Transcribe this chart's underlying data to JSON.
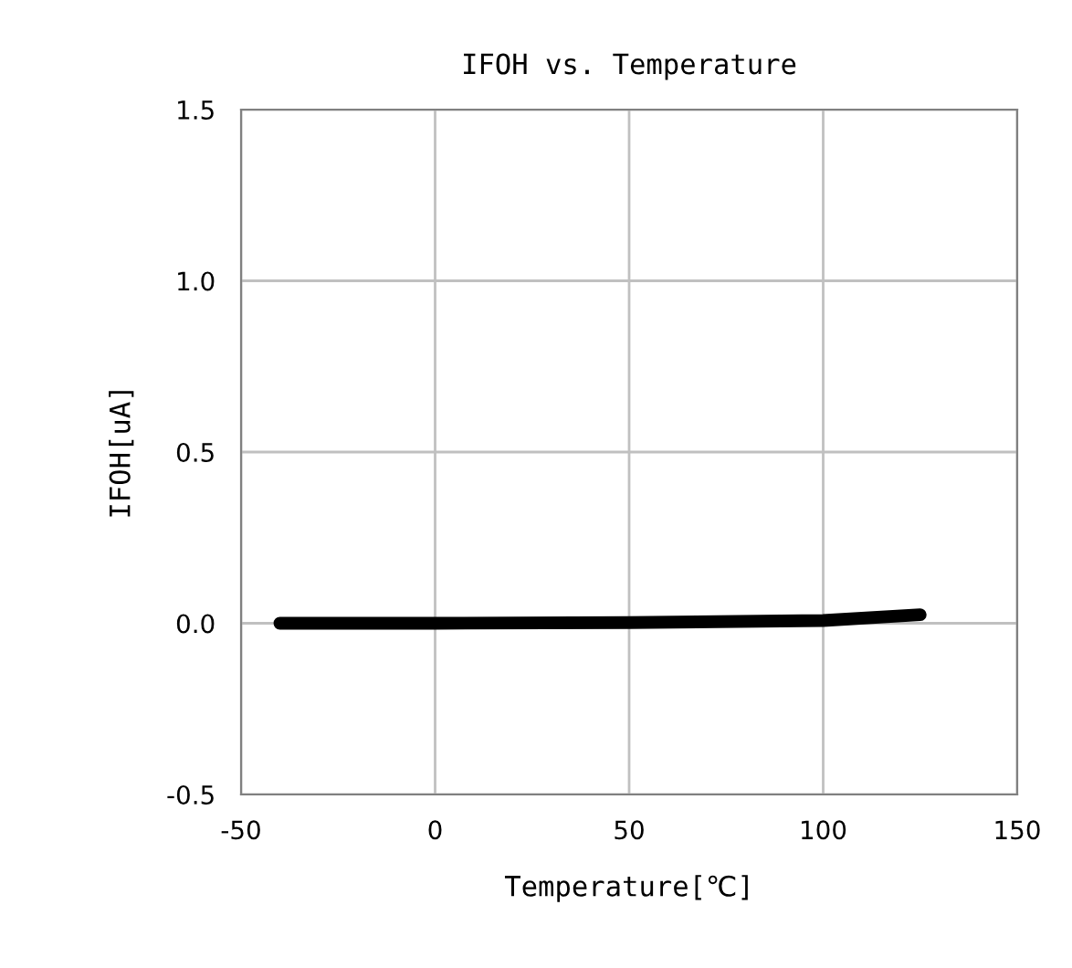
{
  "chart_data": {
    "type": "line",
    "title": "IFOH vs. Temperature",
    "xlabel": "Temperature[℃]",
    "ylabel": "IFOH[uA]",
    "x": [
      -40,
      0,
      50,
      100,
      125
    ],
    "series": [
      {
        "color": "#000000",
        "values": [
          0,
          0,
          0.002,
          0.008,
          0.025
        ]
      }
    ],
    "xlim": [
      -50,
      150
    ],
    "xticks": [
      -50,
      0,
      50,
      100,
      150
    ],
    "ylim": [
      -0.5,
      1.5
    ],
    "yticks": [
      {
        "value": -0.5,
        "label": "-0.5"
      },
      {
        "value": 0,
        "label": "0.0"
      },
      {
        "value": 0.5,
        "label": "0.5"
      },
      {
        "value": 1,
        "label": "1.0"
      },
      {
        "value": 1.5,
        "label": "1.5"
      }
    ],
    "grid": true,
    "marker": "none",
    "line_style": "solid",
    "legend": false
  }
}
